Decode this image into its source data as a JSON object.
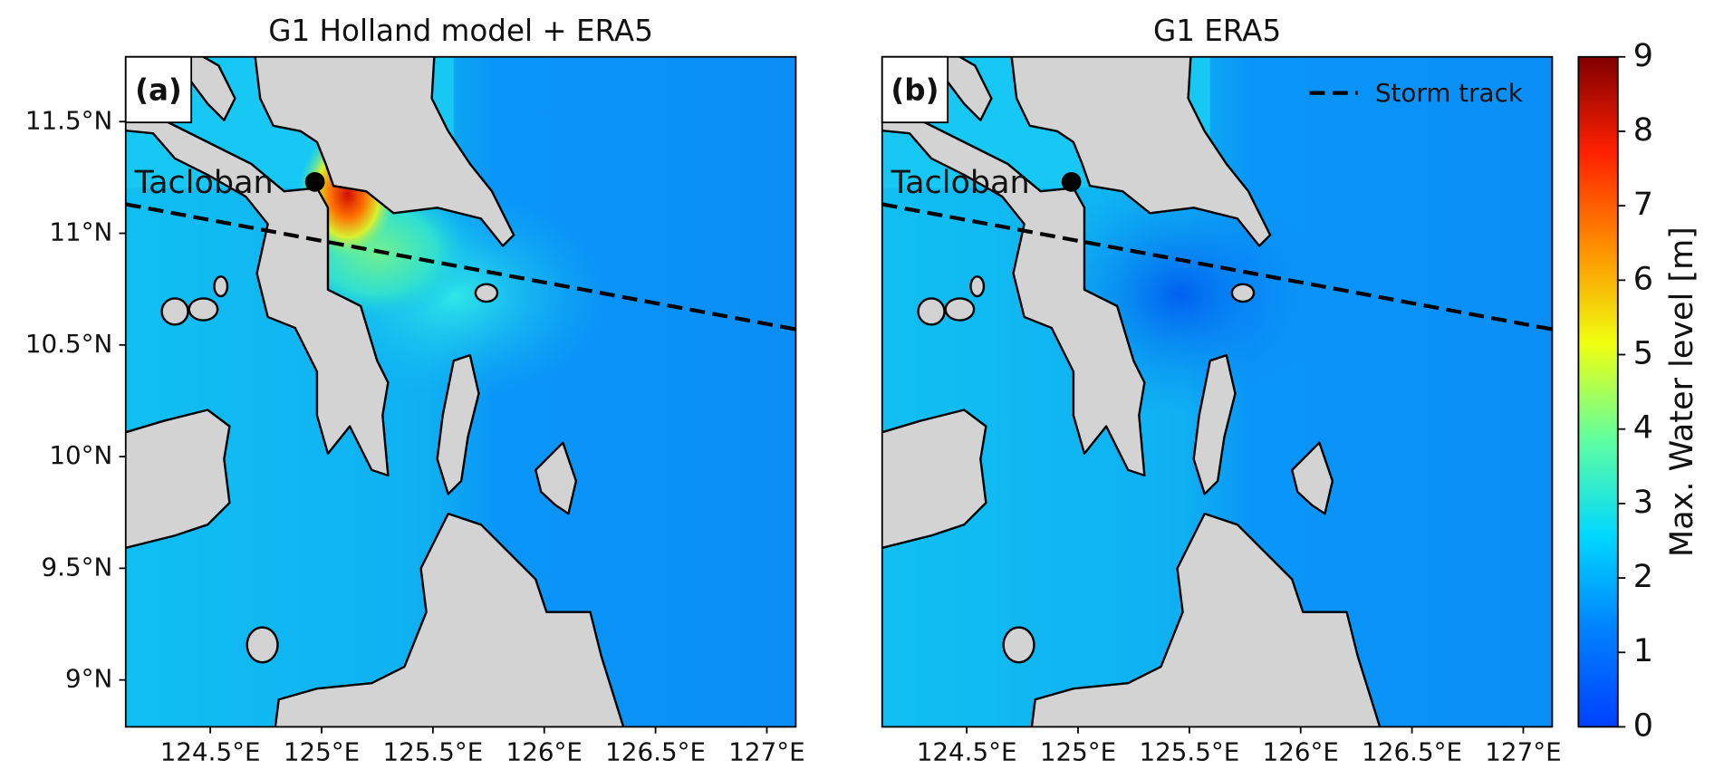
{
  "maps": [
    {
      "title": "G1 Holland model + ERA5",
      "panel_label": "(a)",
      "xlim": [
        124.12,
        127.13
      ],
      "ylim": [
        8.79,
        11.79
      ],
      "xticks": [
        {
          "value": 124.5,
          "label": "124.5°E"
        },
        {
          "value": 125,
          "label": "125°E"
        },
        {
          "value": 125.5,
          "label": "125.5°E"
        },
        {
          "value": 126,
          "label": "126°E"
        },
        {
          "value": 126.5,
          "label": "126.5°E"
        },
        {
          "value": 127,
          "label": "127°E"
        }
      ],
      "yticks": [
        {
          "value": 9,
          "label": "9°N"
        },
        {
          "value": 9.5,
          "label": "9.5°N"
        },
        {
          "value": 10,
          "label": "10°N"
        },
        {
          "value": 10.5,
          "label": "10.5°N"
        },
        {
          "value": 11,
          "label": "11°N"
        },
        {
          "value": 11.5,
          "label": "11.5°N"
        }
      ]
    },
    {
      "title": "G1 ERA5",
      "panel_label": "(b)",
      "xlim": [
        124.12,
        127.13
      ],
      "ylim": [
        8.79,
        11.79
      ],
      "xticks": [
        {
          "value": 124.5,
          "label": "124.5°E"
        },
        {
          "value": 125,
          "label": "125°E"
        },
        {
          "value": 125.5,
          "label": "125.5°E"
        },
        {
          "value": 126,
          "label": "126°E"
        },
        {
          "value": 126.5,
          "label": "126.5°E"
        },
        {
          "value": 127,
          "label": "127°E"
        }
      ]
    }
  ],
  "storm_track": {
    "name": "Storm track",
    "lon": [
      124.12,
      127.13
    ],
    "lat": [
      11.13,
      10.57
    ]
  },
  "city": {
    "name": "Tacloban",
    "lon": 124.97,
    "lat": 11.23
  },
  "colorbar": {
    "label": "Max. Water level [m]",
    "lim": [
      0,
      9
    ],
    "ticks": [
      0,
      1,
      2,
      3,
      4,
      5,
      6,
      7,
      8,
      9
    ],
    "colors": [
      "#0040ff",
      "#0080ff",
      "#00d8ff",
      "#60ffa0",
      "#f0ff10",
      "#ff9000",
      "#ff2000",
      "#800000"
    ]
  }
}
